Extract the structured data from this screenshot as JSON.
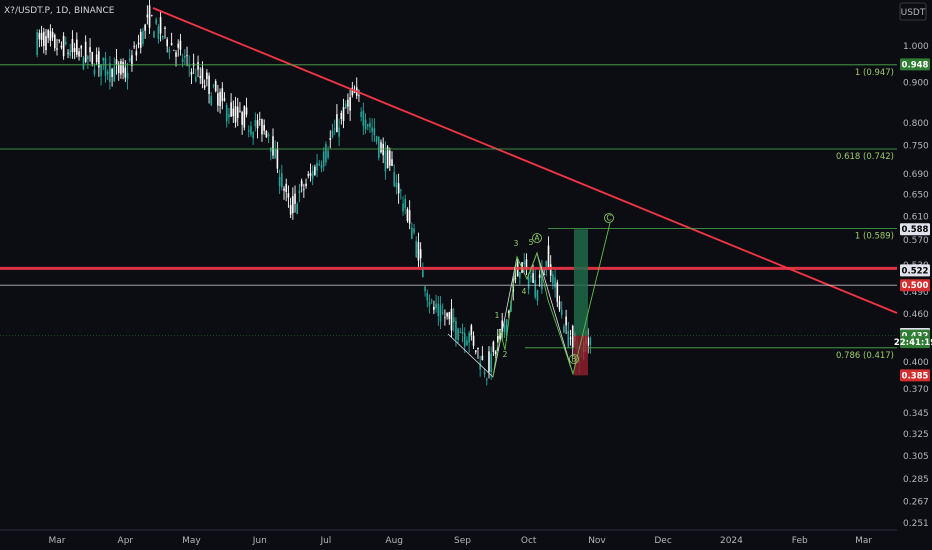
{
  "header": {
    "symbol": "X?/USDT.P, 1D, BINANCE",
    "currency": "USDT"
  },
  "price_scale": [
    "1.000",
    "0.900",
    "0.800",
    "0.750",
    "0.690",
    "0.650",
    "0.610",
    "0.570",
    "0.530",
    "0.490",
    "0.460",
    "0.430",
    "0.400",
    "0.370",
    "0.345",
    "0.325",
    "0.305",
    "0.285",
    "0.267",
    "0.251"
  ],
  "time_axis": [
    "Mar",
    "Apr",
    "May",
    "Jun",
    "Jul",
    "Aug",
    "Sep",
    "Oct",
    "Nov",
    "Dec",
    "2024",
    "Feb",
    "Mar"
  ],
  "fib_levels": [
    {
      "label": "1 (0.947)",
      "price": 0.947
    },
    {
      "label": "0.618 (0.742)",
      "price": 0.742
    },
    {
      "label": "1 (0.589)",
      "price": 0.589
    },
    {
      "label": "0.786 (0.417)",
      "price": 0.417
    }
  ],
  "wave_labels": [
    "1",
    "2",
    "3",
    "4",
    "5",
    "A",
    "B",
    "C"
  ],
  "price_tags": [
    {
      "text": "0.948",
      "price": 0.948,
      "bg": "#2e7d32",
      "fg": "#ffffff"
    },
    {
      "text": "0.588",
      "price": 0.588,
      "bg": "#e0e3eb",
      "fg": "#000000"
    },
    {
      "text": "0.522",
      "price": 0.522,
      "bg": "#e0e3eb",
      "fg": "#000000"
    },
    {
      "text": "0.500",
      "price": 0.5,
      "bg": "#d32f2f",
      "fg": "#ffffff"
    },
    {
      "text": "0.434",
      "price": 0.434,
      "bg": "#e0e3eb",
      "fg": "#000000"
    },
    {
      "text": "0.432",
      "price": 0.432,
      "bg": "#2e7d32",
      "fg": "#ffffff"
    },
    {
      "text": "22:41:19",
      "price": 0.424,
      "bg": "#2e7d32",
      "fg": "#ffffff"
    },
    {
      "text": "0.385",
      "price": 0.385,
      "bg": "#d32f2f",
      "fg": "#ffffff"
    }
  ],
  "colors": {
    "up": "#ffffff",
    "down": "#26a69a",
    "trendline": "#f23645",
    "fib": "#4caf50",
    "resistance": "#f23645",
    "target": "#1e6b4a",
    "stop": "#8b1e2b"
  },
  "chart_data": {
    "type": "candlestick",
    "title": "X?/USDT.P, 1D, BINANCE",
    "scale": "log",
    "ylim": [
      0.24,
      1.15
    ],
    "key_prices": {
      "resistance": 0.525,
      "support_line": 0.5,
      "current": 0.432,
      "stop": 0.385,
      "target": 0.588
    },
    "path_points": [
      {
        "date": "2023-02-20",
        "price": 1.02
      },
      {
        "date": "2023-03-10",
        "price": 0.98
      },
      {
        "date": "2023-04-01",
        "price": 0.92
      },
      {
        "date": "2023-04-12",
        "price": 1.08
      },
      {
        "date": "2023-05-01",
        "price": 0.94
      },
      {
        "date": "2023-05-20",
        "price": 0.82
      },
      {
        "date": "2023-06-05",
        "price": 0.78
      },
      {
        "date": "2023-06-15",
        "price": 0.62
      },
      {
        "date": "2023-07-01",
        "price": 0.74
      },
      {
        "date": "2023-07-14",
        "price": 0.87
      },
      {
        "date": "2023-08-01",
        "price": 0.69
      },
      {
        "date": "2023-08-10",
        "price": 0.58
      },
      {
        "date": "2023-08-18",
        "price": 0.47
      },
      {
        "date": "2023-09-05",
        "price": 0.43
      },
      {
        "date": "2023-09-12",
        "price": 0.39
      },
      {
        "date": "2023-09-20",
        "price": 0.44
      },
      {
        "date": "2023-09-27",
        "price": 0.53
      },
      {
        "date": "2023-10-05",
        "price": 0.5
      },
      {
        "date": "2023-10-10",
        "price": 0.54
      },
      {
        "date": "2023-10-18",
        "price": 0.44
      },
      {
        "date": "2023-10-25",
        "price": 0.41
      },
      {
        "date": "2023-10-29",
        "price": 0.432
      }
    ]
  }
}
